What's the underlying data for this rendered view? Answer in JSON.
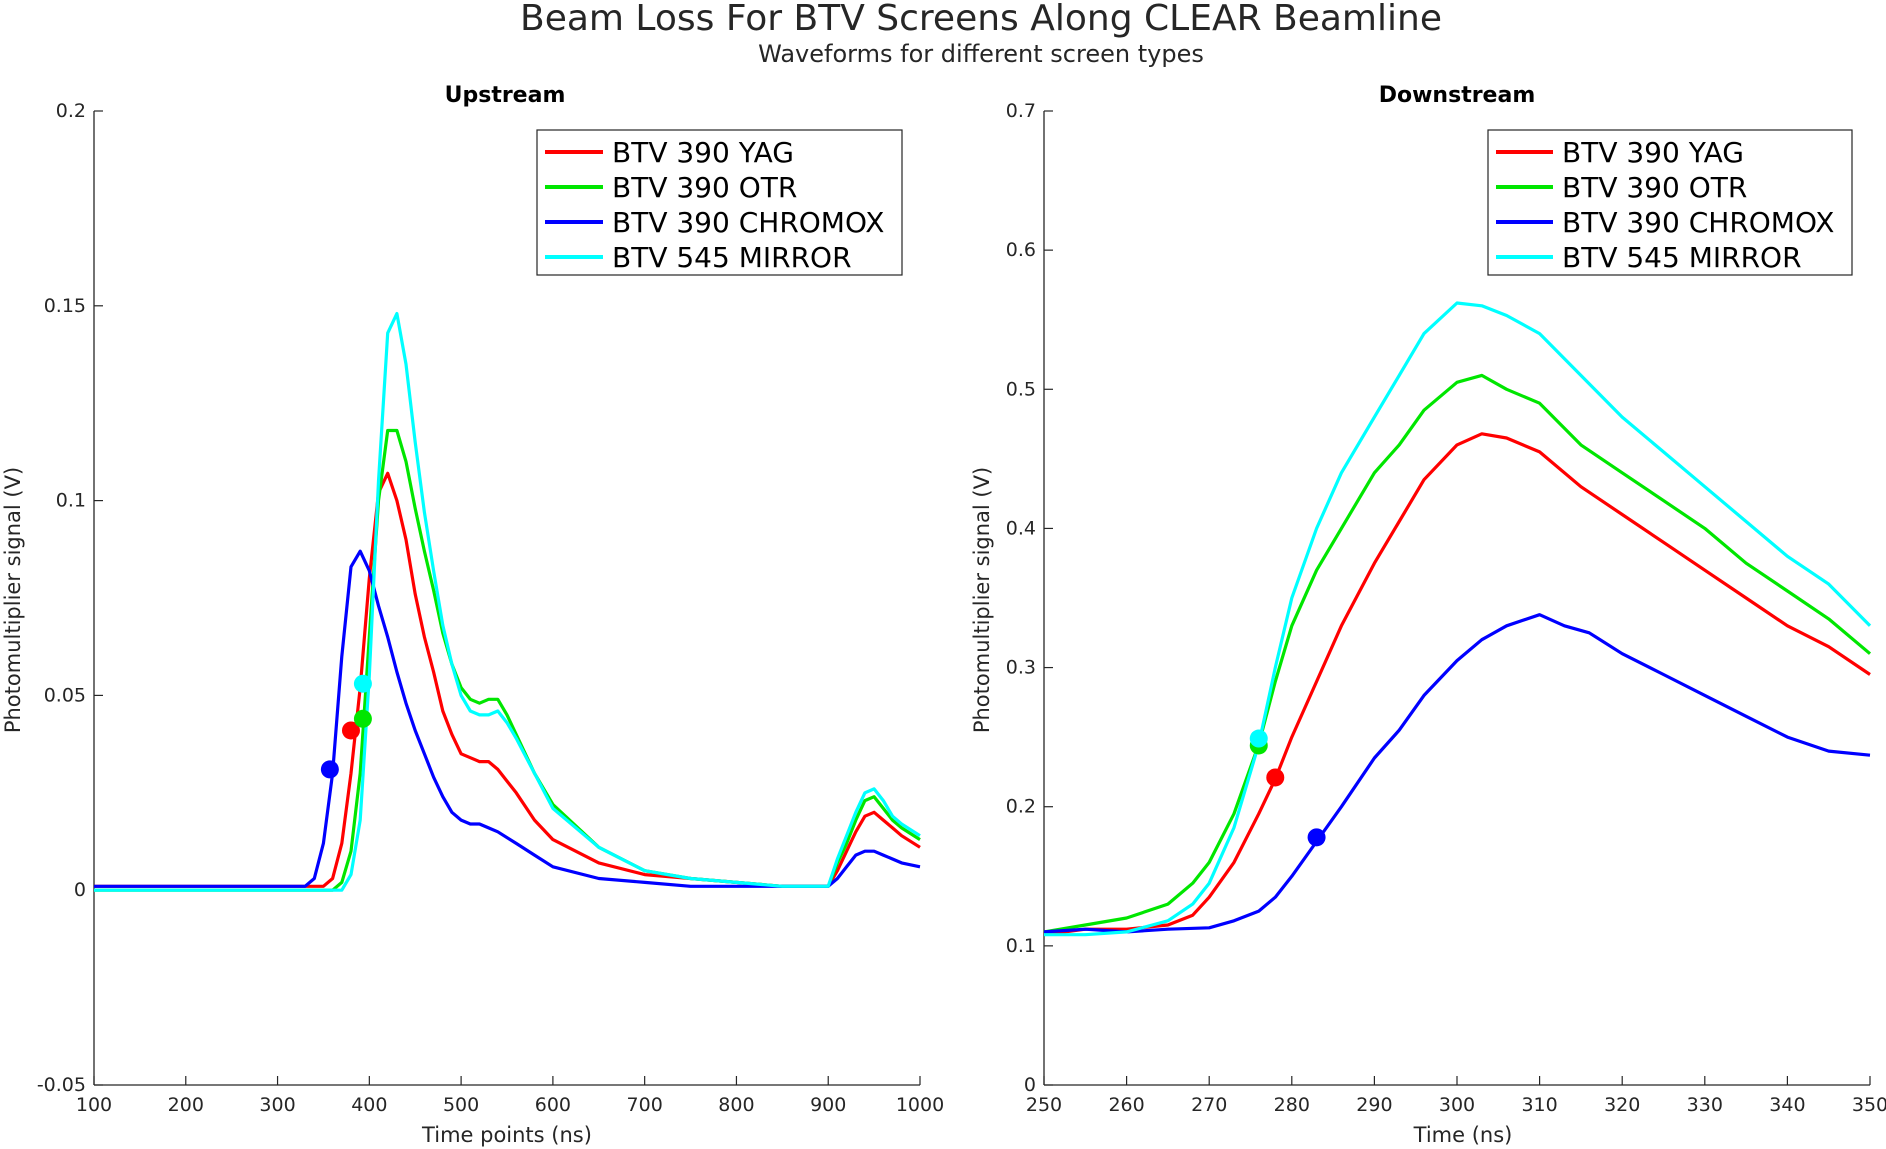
{
  "title": "Beam Loss For BTV Screens Along CLEAR Beamline",
  "subtitle": "Waveforms for different screen types",
  "series_colors": {
    "BTV 390 YAG": "#ff0000",
    "BTV 390 OTR": "#00e600",
    "BTV 390 CHROMOX": "#0000ff",
    "BTV 545 MIRROR": "#00ffff"
  },
  "chart_data": [
    {
      "type": "line",
      "title": "Upstream",
      "xlabel": "Time points (ns)",
      "ylabel": "Photomultiplier signal (V)",
      "xlim": [
        100,
        1000
      ],
      "ylim": [
        -0.05,
        0.2
      ],
      "xticks": [
        100,
        200,
        300,
        400,
        500,
        600,
        700,
        800,
        900,
        1000
      ],
      "yticks": [
        -0.05,
        0,
        0.05,
        0.1,
        0.15,
        0.2
      ],
      "xtick_labels": [
        "100",
        "200",
        "300",
        "400",
        "500",
        "600",
        "700",
        "800",
        "900",
        "1000"
      ],
      "ytick_labels": [
        "-0.05",
        "0",
        "0.05",
        "0.1",
        "0.15",
        "0.2"
      ],
      "legend_position": "top-right",
      "grid": false,
      "series": [
        {
          "name": "BTV 390 YAG",
          "color": "#ff0000",
          "x": [
            100,
            350,
            360,
            370,
            380,
            390,
            400,
            410,
            420,
            430,
            440,
            450,
            460,
            470,
            480,
            490,
            500,
            510,
            520,
            530,
            540,
            550,
            560,
            580,
            600,
            650,
            700,
            750,
            800,
            850,
            900,
            910,
            920,
            930,
            940,
            950,
            960,
            970,
            980,
            1000
          ],
          "y": [
            0.001,
            0.001,
            0.003,
            0.012,
            0.03,
            0.052,
            0.08,
            0.102,
            0.107,
            0.1,
            0.09,
            0.076,
            0.065,
            0.056,
            0.046,
            0.04,
            0.035,
            0.034,
            0.033,
            0.033,
            0.031,
            0.028,
            0.025,
            0.018,
            0.013,
            0.007,
            0.004,
            0.003,
            0.002,
            0.001,
            0.001,
            0.005,
            0.01,
            0.015,
            0.019,
            0.02,
            0.018,
            0.016,
            0.014,
            0.011
          ]
        },
        {
          "name": "BTV 390 OTR",
          "color": "#00e600",
          "x": [
            100,
            360,
            370,
            380,
            390,
            400,
            410,
            420,
            430,
            440,
            450,
            460,
            470,
            480,
            490,
            500,
            510,
            520,
            530,
            540,
            550,
            560,
            580,
            600,
            650,
            700,
            750,
            800,
            850,
            900,
            910,
            920,
            930,
            940,
            950,
            960,
            970,
            980,
            1000
          ],
          "y": [
            0.0,
            0.0,
            0.002,
            0.01,
            0.03,
            0.065,
            0.1,
            0.118,
            0.118,
            0.11,
            0.098,
            0.087,
            0.077,
            0.066,
            0.058,
            0.052,
            0.049,
            0.048,
            0.049,
            0.049,
            0.045,
            0.04,
            0.03,
            0.022,
            0.011,
            0.005,
            0.003,
            0.002,
            0.001,
            0.001,
            0.007,
            0.012,
            0.018,
            0.023,
            0.024,
            0.021,
            0.018,
            0.016,
            0.013
          ]
        },
        {
          "name": "BTV 390 CHROMOX",
          "color": "#0000ff",
          "x": [
            100,
            330,
            340,
            350,
            360,
            370,
            380,
            390,
            400,
            410,
            420,
            430,
            440,
            450,
            460,
            470,
            480,
            490,
            500,
            510,
            520,
            530,
            540,
            560,
            580,
            600,
            650,
            700,
            750,
            800,
            850,
            900,
            910,
            920,
            930,
            940,
            950,
            960,
            970,
            980,
            1000
          ],
          "y": [
            0.001,
            0.001,
            0.003,
            0.012,
            0.03,
            0.06,
            0.083,
            0.087,
            0.082,
            0.073,
            0.065,
            0.056,
            0.048,
            0.041,
            0.035,
            0.029,
            0.024,
            0.02,
            0.018,
            0.017,
            0.017,
            0.016,
            0.015,
            0.012,
            0.009,
            0.006,
            0.003,
            0.002,
            0.001,
            0.001,
            0.001,
            0.001,
            0.003,
            0.006,
            0.009,
            0.01,
            0.01,
            0.009,
            0.008,
            0.007,
            0.006
          ]
        },
        {
          "name": "BTV 545 MIRROR",
          "color": "#00ffff",
          "x": [
            100,
            370,
            380,
            390,
            400,
            410,
            420,
            430,
            440,
            450,
            460,
            470,
            480,
            490,
            500,
            510,
            520,
            530,
            540,
            550,
            560,
            580,
            600,
            650,
            700,
            750,
            800,
            850,
            900,
            910,
            920,
            930,
            940,
            950,
            960,
            970,
            980,
            1000
          ],
          "y": [
            0.0,
            0.0,
            0.004,
            0.018,
            0.055,
            0.105,
            0.143,
            0.148,
            0.135,
            0.115,
            0.097,
            0.082,
            0.068,
            0.058,
            0.05,
            0.046,
            0.045,
            0.045,
            0.046,
            0.043,
            0.039,
            0.03,
            0.021,
            0.011,
            0.005,
            0.003,
            0.002,
            0.001,
            0.001,
            0.008,
            0.014,
            0.02,
            0.025,
            0.026,
            0.023,
            0.019,
            0.017,
            0.014
          ]
        }
      ],
      "markers": [
        {
          "series": "BTV 390 YAG",
          "x": 380,
          "y": 0.041
        },
        {
          "series": "BTV 390 OTR",
          "x": 393,
          "y": 0.044
        },
        {
          "series": "BTV 390 CHROMOX",
          "x": 357,
          "y": 0.031
        },
        {
          "series": "BTV 545 MIRROR",
          "x": 393,
          "y": 0.053
        }
      ]
    },
    {
      "type": "line",
      "title": "Downstream",
      "xlabel": "Time (ns)",
      "ylabel": "Photomultiplier signal (V)",
      "xlim": [
        250,
        350
      ],
      "ylim": [
        0,
        0.7
      ],
      "xticks": [
        250,
        260,
        270,
        280,
        290,
        300,
        310,
        320,
        330,
        340,
        350
      ],
      "yticks": [
        0,
        0.1,
        0.2,
        0.3,
        0.4,
        0.5,
        0.6,
        0.7
      ],
      "xtick_labels": [
        "250",
        "260",
        "270",
        "280",
        "290",
        "300",
        "310",
        "320",
        "330",
        "340",
        "350"
      ],
      "ytick_labels": [
        "0",
        "0.1",
        "0.2",
        "0.3",
        "0.4",
        "0.5",
        "0.6",
        "0.7"
      ],
      "legend_position": "top-right",
      "grid": false,
      "series": [
        {
          "name": "BTV 390 YAG",
          "color": "#ff0000",
          "x": [
            250,
            255,
            260,
            265,
            268,
            270,
            273,
            276,
            278,
            280,
            283,
            286,
            290,
            293,
            296,
            300,
            303,
            306,
            310,
            315,
            320,
            325,
            330,
            335,
            340,
            345,
            350
          ],
          "y": [
            0.108,
            0.112,
            0.112,
            0.115,
            0.122,
            0.135,
            0.16,
            0.195,
            0.22,
            0.25,
            0.29,
            0.33,
            0.375,
            0.405,
            0.435,
            0.46,
            0.468,
            0.465,
            0.455,
            0.43,
            0.41,
            0.39,
            0.37,
            0.35,
            0.33,
            0.315,
            0.295
          ]
        },
        {
          "name": "BTV 390 OTR",
          "color": "#00e600",
          "x": [
            250,
            255,
            260,
            265,
            268,
            270,
            273,
            276,
            278,
            280,
            283,
            286,
            290,
            293,
            296,
            300,
            303,
            306,
            310,
            315,
            320,
            325,
            330,
            335,
            340,
            345,
            350
          ],
          "y": [
            0.11,
            0.115,
            0.12,
            0.13,
            0.145,
            0.16,
            0.195,
            0.245,
            0.29,
            0.33,
            0.37,
            0.4,
            0.44,
            0.46,
            0.485,
            0.505,
            0.51,
            0.5,
            0.49,
            0.46,
            0.44,
            0.42,
            0.4,
            0.375,
            0.355,
            0.335,
            0.31
          ]
        },
        {
          "name": "BTV 390 CHROMOX",
          "color": "#0000ff",
          "x": [
            250,
            255,
            260,
            265,
            270,
            273,
            276,
            278,
            280,
            283,
            286,
            290,
            293,
            296,
            300,
            303,
            306,
            310,
            313,
            316,
            320,
            325,
            330,
            335,
            340,
            345,
            350
          ],
          "y": [
            0.11,
            0.112,
            0.11,
            0.112,
            0.113,
            0.118,
            0.125,
            0.135,
            0.15,
            0.175,
            0.2,
            0.235,
            0.255,
            0.28,
            0.305,
            0.32,
            0.33,
            0.338,
            0.33,
            0.325,
            0.31,
            0.295,
            0.28,
            0.265,
            0.25,
            0.24,
            0.237
          ]
        },
        {
          "name": "BTV 545 MIRROR",
          "color": "#00ffff",
          "x": [
            250,
            255,
            260,
            265,
            268,
            270,
            273,
            276,
            278,
            280,
            283,
            286,
            290,
            293,
            296,
            300,
            303,
            306,
            310,
            315,
            320,
            325,
            330,
            335,
            340,
            345,
            350
          ],
          "y": [
            0.108,
            0.108,
            0.11,
            0.118,
            0.13,
            0.145,
            0.185,
            0.245,
            0.3,
            0.35,
            0.4,
            0.44,
            0.48,
            0.51,
            0.54,
            0.562,
            0.56,
            0.553,
            0.54,
            0.51,
            0.48,
            0.455,
            0.43,
            0.405,
            0.38,
            0.36,
            0.33
          ]
        }
      ],
      "markers": [
        {
          "series": "BTV 390 YAG",
          "x": 278,
          "y": 0.221
        },
        {
          "series": "BTV 390 OTR",
          "x": 276,
          "y": 0.244
        },
        {
          "series": "BTV 390 CHROMOX",
          "x": 283,
          "y": 0.178
        },
        {
          "series": "BTV 545 MIRROR",
          "x": 276,
          "y": 0.249
        }
      ]
    }
  ]
}
